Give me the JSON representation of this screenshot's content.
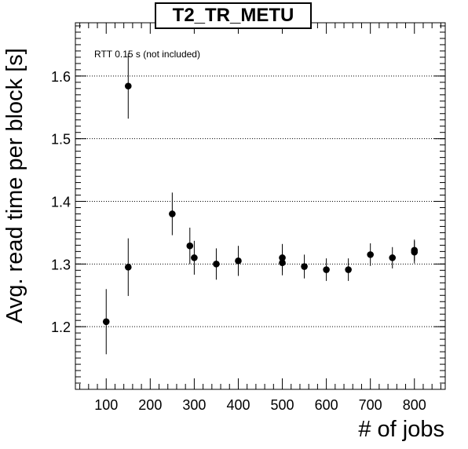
{
  "chart_data": {
    "type": "scatter",
    "title": "T2_TR_METU",
    "annotation": "RTT 0.15 s (not included)",
    "xlabel": "# of jobs",
    "ylabel": "Avg. read time per block [s]",
    "xlim": [
      30,
      870
    ],
    "ylim": [
      1.1,
      1.685
    ],
    "x_ticks": [
      100,
      200,
      300,
      400,
      500,
      600,
      700,
      800
    ],
    "y_ticks": [
      1.2,
      1.3,
      1.4,
      1.5,
      1.6
    ],
    "y_tick_labels": [
      "1.2",
      "1.3",
      "1.4",
      "1.5",
      "1.6"
    ],
    "grid": "horizontal dotted",
    "marker_color": "#000000",
    "points": [
      {
        "x": 100,
        "y": 1.208,
        "err": 0.052
      },
      {
        "x": 150,
        "y": 1.295,
        "err": 0.046
      },
      {
        "x": 150,
        "y": 1.584,
        "err": 0.052
      },
      {
        "x": 250,
        "y": 1.38,
        "err": 0.034
      },
      {
        "x": 290,
        "y": 1.329,
        "err": 0.029
      },
      {
        "x": 300,
        "y": 1.31,
        "err": 0.027
      },
      {
        "x": 350,
        "y": 1.3,
        "err": 0.025
      },
      {
        "x": 400,
        "y": 1.305,
        "err": 0.024
      },
      {
        "x": 500,
        "y": 1.31,
        "err": 0.022
      },
      {
        "x": 500,
        "y": 1.302,
        "err": 0.02
      },
      {
        "x": 550,
        "y": 1.296,
        "err": 0.019
      },
      {
        "x": 600,
        "y": 1.291,
        "err": 0.018
      },
      {
        "x": 650,
        "y": 1.291,
        "err": 0.018
      },
      {
        "x": 700,
        "y": 1.315,
        "err": 0.018
      },
      {
        "x": 750,
        "y": 1.31,
        "err": 0.017
      },
      {
        "x": 800,
        "y": 1.319,
        "err": 0.018
      },
      {
        "x": 800,
        "y": 1.322,
        "err": 0.017
      }
    ]
  }
}
